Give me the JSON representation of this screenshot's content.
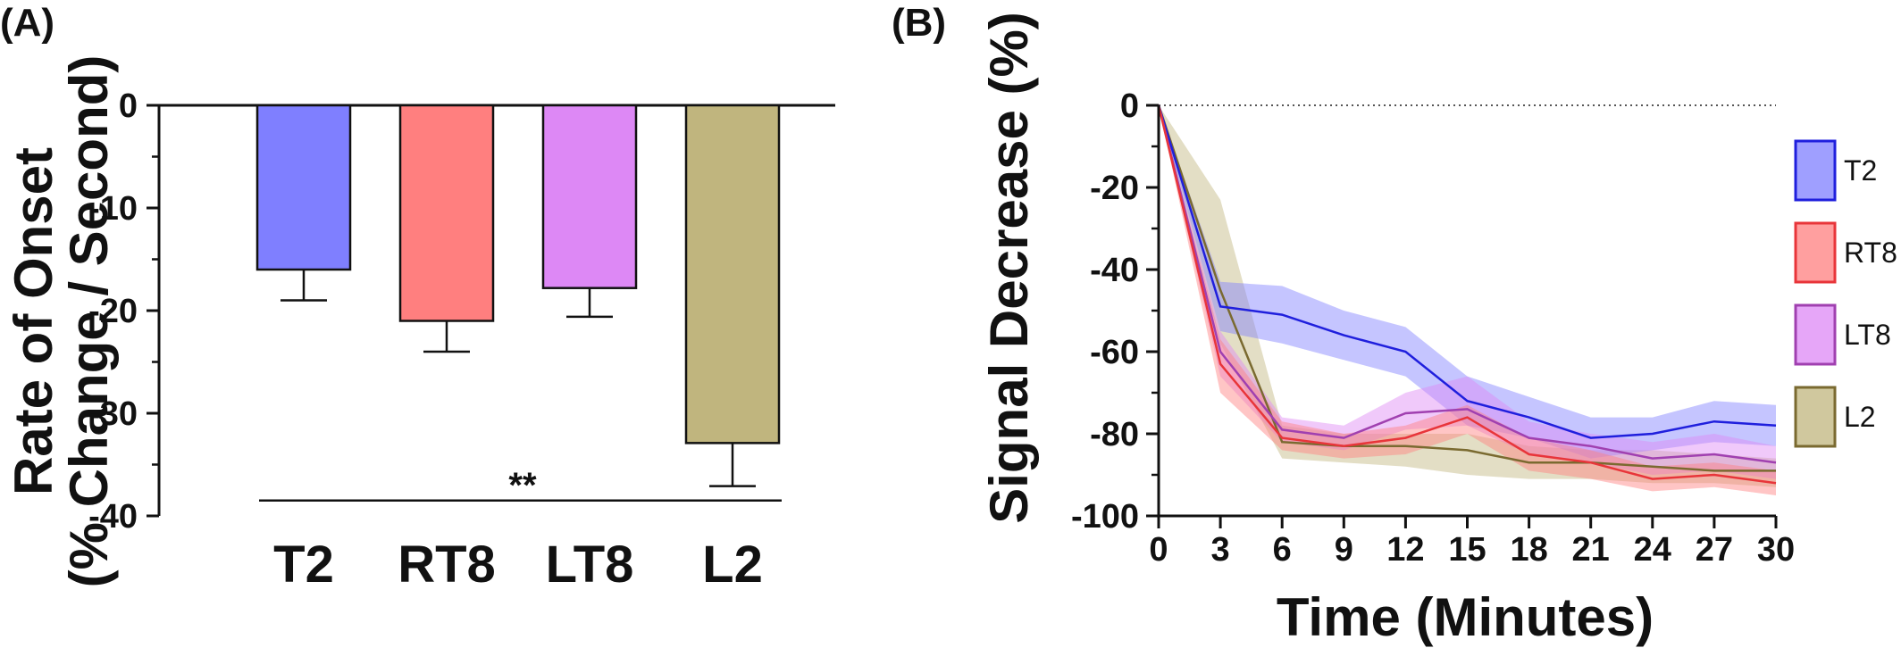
{
  "colors": {
    "T2": "#7f7fff",
    "RT8": "#ff7f7f",
    "LT8": "#dd88f5",
    "L2": "#c0b57e",
    "T2_line": "#1f1fdd",
    "RT8_line": "#e8353a",
    "LT8_line": "#a040b0",
    "L2_line": "#7a6a30"
  },
  "panelA": {
    "label": "(A)"
  },
  "panelB": {
    "label": "(B)"
  },
  "chart_data": [
    {
      "type": "bar",
      "ylabel_line1": "Rate of Onset",
      "ylabel_line2": "(% Change / Second)",
      "xlabel": "",
      "categories": [
        "T2",
        "RT8",
        "LT8",
        "L2"
      ],
      "values": [
        -16,
        -21,
        -17.8,
        -32.9
      ],
      "errors": [
        3,
        3,
        2.8,
        4.2
      ],
      "ylim": [
        -40,
        0
      ],
      "yticks": [
        0,
        -10,
        -20,
        -30,
        -40
      ],
      "yticklabels": [
        "0",
        "-10",
        "-20",
        "-30",
        "-40"
      ],
      "significance": {
        "text": "**",
        "y": -38.5
      }
    },
    {
      "type": "line",
      "xlabel": "Time (Minutes)",
      "ylabel": "Signal Decrease (%)",
      "x": [
        0,
        3,
        6,
        9,
        12,
        15,
        18,
        21,
        24,
        27,
        30
      ],
      "xlim": [
        0,
        30
      ],
      "ylim": [
        -100,
        0
      ],
      "xticks": [
        0,
        3,
        6,
        9,
        12,
        15,
        18,
        21,
        24,
        27,
        30
      ],
      "xticklabels": [
        "0",
        "3",
        "6",
        "9",
        "12",
        "15",
        "18",
        "21",
        "24",
        "27",
        "30"
      ],
      "yticks": [
        0,
        -20,
        -40,
        -60,
        -80,
        -100
      ],
      "yticklabels": [
        "0",
        "-20",
        "-40",
        "-60",
        "-80",
        "-100"
      ],
      "zero_line": "dotted",
      "legend_position": "right",
      "series": [
        {
          "name": "T2",
          "mean": [
            0,
            -49,
            -51,
            -56,
            -60,
            -72,
            -76,
            -81,
            -80,
            -77,
            -78
          ],
          "lower": [
            0,
            -55,
            -58,
            -62,
            -66,
            -78,
            -81,
            -86,
            -84,
            -82,
            -83
          ],
          "upper": [
            0,
            -43,
            -44,
            -50,
            -54,
            -66,
            -71,
            -76,
            -76,
            -72,
            -73
          ]
        },
        {
          "name": "RT8",
          "mean": [
            0,
            -63,
            -81,
            -83,
            -81,
            -76,
            -85,
            -87,
            -91,
            -90,
            -92
          ],
          "lower": [
            0,
            -70,
            -84,
            -86,
            -85,
            -80,
            -89,
            -91,
            -94,
            -93,
            -95
          ],
          "upper": [
            0,
            -57,
            -77,
            -80,
            -78,
            -73,
            -81,
            -84,
            -88,
            -87,
            -89
          ]
        },
        {
          "name": "LT8",
          "mean": [
            0,
            -60,
            -79,
            -81,
            -75,
            -74,
            -81,
            -83,
            -86,
            -85,
            -87
          ],
          "lower": [
            0,
            -66,
            -82,
            -84,
            -79,
            -78,
            -85,
            -87,
            -90,
            -89,
            -91
          ],
          "upper": [
            0,
            -55,
            -76,
            -78,
            -70,
            -66,
            -77,
            -80,
            -82,
            -80,
            -83
          ]
        },
        {
          "name": "L2",
          "mean": [
            0,
            -45,
            -82,
            -83,
            -83,
            -84,
            -87,
            -87,
            -88,
            -89,
            -89
          ],
          "lower": [
            0,
            -58,
            -86,
            -87,
            -88,
            -90,
            -91,
            -91,
            -92,
            -92,
            -93
          ],
          "upper": [
            0,
            -23,
            -78,
            -80,
            -80,
            -80,
            -83,
            -84,
            -84,
            -85,
            -86
          ]
        }
      ]
    }
  ]
}
